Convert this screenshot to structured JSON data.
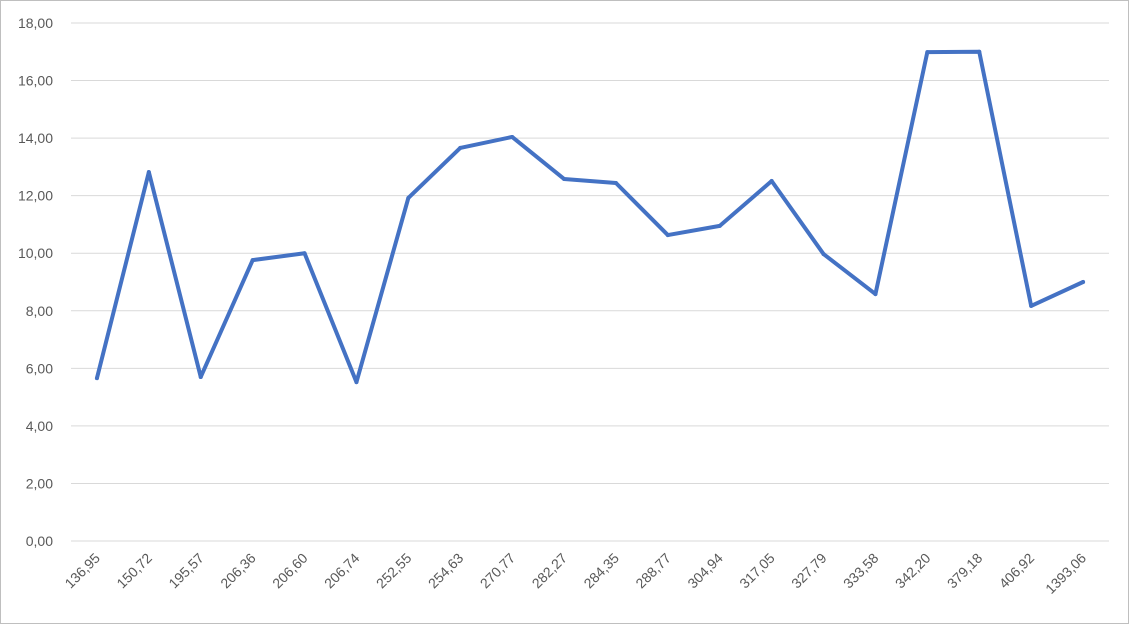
{
  "chart_data": {
    "type": "line",
    "title": "",
    "xlabel": "",
    "ylabel": "",
    "categories": [
      "136,95",
      "150,72",
      "195,57",
      "206,36",
      "206,60",
      "206,74",
      "252,55",
      "254,63",
      "270,77",
      "282,27",
      "284,35",
      "288,77",
      "304,94",
      "317,05",
      "327,79",
      "333,58",
      "342,20",
      "379,18",
      "406,92",
      "1393,06"
    ],
    "series": [
      {
        "values": [
          5.66,
          12.82,
          5.7,
          9.76,
          10.0,
          5.52,
          11.92,
          13.66,
          14.04,
          12.58,
          12.44,
          10.63,
          10.95,
          12.51,
          9.97,
          8.58,
          16.99,
          17.0,
          8.17,
          9.0
        ]
      }
    ],
    "ylim": [
      0,
      18
    ],
    "yticks": [
      "0,00",
      "2,00",
      "4,00",
      "6,00",
      "8,00",
      "10,00",
      "12,00",
      "14,00",
      "16,00",
      "18,00"
    ],
    "grid": true,
    "legend": "none",
    "line_color": "#4472C4",
    "grid_color": "#d9d9d9"
  }
}
